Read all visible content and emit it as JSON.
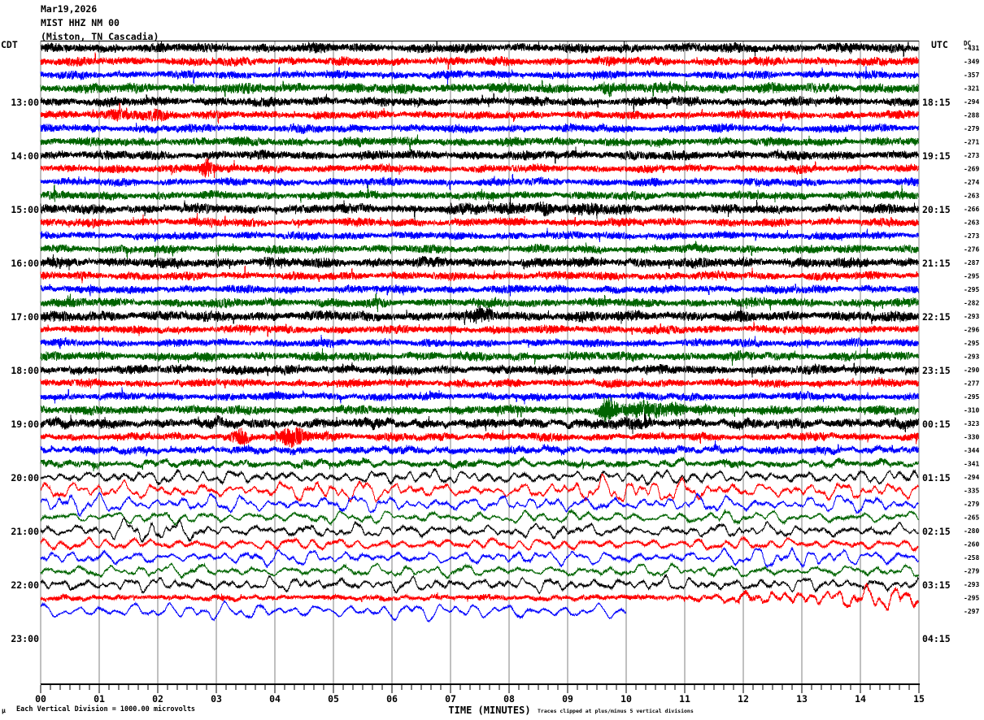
{
  "title": {
    "date": "Mar19,2026",
    "station": "MIST HHZ NM 00",
    "location": "(Miston, TN Cascadia)"
  },
  "left_axis": {
    "header": "CDT",
    "hour_labels": [
      "13:00",
      "14:00",
      "15:00",
      "16:00",
      "17:00",
      "18:00",
      "19:00",
      "20:00",
      "21:00",
      "22:00",
      "23:00"
    ]
  },
  "right_axis": {
    "header": "UTC",
    "hour_labels": [
      "18:15",
      "19:15",
      "20:15",
      "21:15",
      "22:15",
      "23:15",
      "00:15",
      "01:15",
      "02:15",
      "03:15",
      "04:15"
    ],
    "dc_header": "DC",
    "dc_values": [
      "-431",
      "-349",
      "-357",
      "-321",
      "-294",
      "-288",
      "-279",
      "-271",
      "-273",
      "-269",
      "-274",
      "-263",
      "-266",
      "-263",
      "-273",
      "-276",
      "-287",
      "-295",
      "-295",
      "-282",
      "-293",
      "-296",
      "-295",
      "-293",
      "-290",
      "-277",
      "-295",
      "-310",
      "-323",
      "-330",
      "-344",
      "-341",
      "-294",
      "-335",
      "-279",
      "-265",
      "-280",
      "-260",
      "-258",
      "-279",
      "-293",
      "-295",
      "-297"
    ]
  },
  "x_axis": {
    "label": "TIME (MINUTES)",
    "tick_labels": [
      "00",
      "01",
      "02",
      "03",
      "04",
      "05",
      "06",
      "07",
      "08",
      "09",
      "10",
      "11",
      "12",
      "13",
      "14",
      "15"
    ]
  },
  "footnotes": {
    "corner_glyph": "μ",
    "left": "Each Vertical Division = 1000.00 microvolts",
    "right": "Traces clipped at plus/minus 5 vertical divisions"
  },
  "colors": {
    "background": "#ffffff",
    "frame": "#000000",
    "grid": "#808080",
    "trace_cycle": [
      "#000000",
      "#ff0000",
      "#0000ff",
      "#006400"
    ]
  },
  "chart_data": {
    "type": "line",
    "subtype": "helicorder-seismogram",
    "minutes_per_line": 15,
    "line_count": 43,
    "label_every_n_lines": 4,
    "traces": [
      {
        "hf": 4.49,
        "lf": 0.9,
        "end": 15,
        "events": []
      },
      {
        "hf": 4.09,
        "lf": 0.8,
        "end": 15,
        "events": []
      },
      {
        "hf": 3.83,
        "lf": 0.8,
        "end": 15,
        "events": []
      },
      {
        "hf": 4.75,
        "lf": 0.8,
        "end": 15,
        "events": [
          {
            "t": 9.7,
            "w": 0.06,
            "m": 0.9,
            "k": "hf"
          }
        ]
      },
      {
        "hf": 4.36,
        "lf": 0.9,
        "end": 15,
        "events": []
      },
      {
        "hf": 3.83,
        "lf": 0.8,
        "end": 15,
        "events": [
          {
            "t": 1.8,
            "w": 0.22,
            "m": 1.3,
            "k": "hf"
          },
          {
            "t": 1.35,
            "w": 0.1,
            "m": 0.7,
            "k": "hf"
          }
        ]
      },
      {
        "hf": 3.83,
        "lf": 0.8,
        "end": 15,
        "events": []
      },
      {
        "hf": 4.22,
        "lf": 0.8,
        "end": 15,
        "events": []
      },
      {
        "hf": 4.36,
        "lf": 0.9,
        "end": 15,
        "events": []
      },
      {
        "hf": 3.7,
        "lf": 0.8,
        "end": 15,
        "events": [
          {
            "t": 2.83,
            "w": 0.07,
            "m": 2.4,
            "k": "hf"
          },
          {
            "t": 2.6,
            "w": 0.2,
            "m": 0.7,
            "k": "hf"
          }
        ]
      },
      {
        "hf": 3.7,
        "lf": 0.8,
        "end": 15,
        "events": []
      },
      {
        "hf": 3.96,
        "lf": 0.8,
        "end": 15,
        "events": []
      },
      {
        "hf": 4.49,
        "lf": 0.9,
        "end": 15,
        "events": [
          {
            "t": 8.58,
            "w": 0.09,
            "m": 1.8,
            "k": "hf"
          },
          {
            "t": 9.35,
            "w": 0.15,
            "m": 0.9,
            "k": "hf"
          },
          {
            "t": 8.0,
            "w": 0.5,
            "m": 0.35,
            "k": "hf"
          }
        ]
      },
      {
        "hf": 3.96,
        "lf": 0.8,
        "end": 15,
        "events": []
      },
      {
        "hf": 3.7,
        "lf": 0.8,
        "end": 15,
        "events": []
      },
      {
        "hf": 3.96,
        "lf": 0.8,
        "end": 15,
        "events": []
      },
      {
        "hf": 4.75,
        "lf": 0.9,
        "end": 15,
        "events": []
      },
      {
        "hf": 3.96,
        "lf": 0.8,
        "end": 15,
        "events": []
      },
      {
        "hf": 3.83,
        "lf": 0.8,
        "end": 15,
        "events": []
      },
      {
        "hf": 4.22,
        "lf": 0.8,
        "end": 15,
        "events": []
      },
      {
        "hf": 4.88,
        "lf": 0.9,
        "end": 15,
        "events": [
          {
            "t": 7.6,
            "w": 0.15,
            "m": 0.8,
            "k": "hf"
          }
        ]
      },
      {
        "hf": 3.96,
        "lf": 0.8,
        "end": 15,
        "events": []
      },
      {
        "hf": 3.7,
        "lf": 0.8,
        "end": 15,
        "events": []
      },
      {
        "hf": 4.22,
        "lf": 0.9,
        "end": 15,
        "events": []
      },
      {
        "hf": 4.36,
        "lf": 1.0,
        "end": 15,
        "events": []
      },
      {
        "hf": 3.83,
        "lf": 0.9,
        "end": 15,
        "events": []
      },
      {
        "hf": 3.7,
        "lf": 0.9,
        "end": 15,
        "events": []
      },
      {
        "hf": 4.22,
        "lf": 0.9,
        "end": 15,
        "events": [
          {
            "t": 9.67,
            "w": 0.1,
            "m": 2.4,
            "k": "hf"
          },
          {
            "t": 10.3,
            "w": 0.22,
            "m": 1.5,
            "k": "hf"
          },
          {
            "t": 10.9,
            "w": 0.15,
            "m": 0.8,
            "k": "hf"
          },
          {
            "t": 11.3,
            "w": 0.09,
            "m": 1.3,
            "k": "hf"
          }
        ]
      },
      {
        "hf": 4.49,
        "lf": 2.2,
        "end": 15,
        "events": [
          {
            "t": 9.7,
            "w": 0.3,
            "m": 0.4,
            "k": "hf"
          }
        ]
      },
      {
        "hf": 3.7,
        "lf": 1.2,
        "end": 15,
        "events": [
          {
            "t": 3.4,
            "w": 0.09,
            "m": 1.8,
            "k": "hf"
          },
          {
            "t": 4.35,
            "w": 0.18,
            "m": 1.6,
            "k": "hf"
          },
          {
            "t": 4.8,
            "w": 0.2,
            "m": 0.6,
            "k": "hf"
          }
        ]
      },
      {
        "hf": 3.43,
        "lf": 2.2,
        "end": 15,
        "events": [],
        "pf": 1.1
      },
      {
        "hf": 2.9,
        "lf": 3.4,
        "end": 15,
        "events": [],
        "pf": 1.1
      },
      {
        "hf": 1.3,
        "lf": 6.9,
        "end": 15,
        "events": [],
        "pf": 1.15
      },
      {
        "hf": 1.3,
        "lf": 8.2,
        "end": 15,
        "events": [
          {
            "t": 10.6,
            "w": 1.0,
            "m": 0.8,
            "k": "lf"
          },
          {
            "t": 4.8,
            "w": 0.8,
            "m": 0.35,
            "k": "lf"
          }
        ],
        "pf": 1.15
      },
      {
        "hf": 1.13,
        "lf": 8.28,
        "end": 15,
        "events": [
          {
            "t": 0.8,
            "w": 0.7,
            "m": 0.45,
            "k": "lf"
          }
        ],
        "pf": 1.15
      },
      {
        "hf": 1.13,
        "lf": 6.32,
        "end": 15,
        "events": [],
        "pf": 1.15
      },
      {
        "hf": 1.22,
        "lf": 7.13,
        "end": 15,
        "events": [
          {
            "t": 1.7,
            "w": 0.55,
            "m": 0.9,
            "k": "lf"
          }
        ],
        "pf": 1.15
      },
      {
        "hf": 1.46,
        "lf": 5.75,
        "end": 15,
        "events": [],
        "pf": 1.15
      },
      {
        "hf": 1.13,
        "lf": 7.36,
        "end": 15,
        "events": [
          {
            "t": 13.2,
            "w": 0.8,
            "m": 0.7,
            "k": "lf"
          }
        ],
        "pf": 1.15
      },
      {
        "hf": 1.13,
        "lf": 6.21,
        "end": 15,
        "events": [],
        "pf": 1.15
      },
      {
        "hf": 1.3,
        "lf": 7.0,
        "end": 15,
        "events": [],
        "pf": 1.15
      },
      {
        "hf": 2.38,
        "lf": 1.7,
        "end": 15,
        "events": [
          {
            "t": 13.7,
            "w": 1.1,
            "m": 7.0,
            "k": "lf"
          }
        ],
        "pf": 1.3
      },
      {
        "hf": 0.97,
        "lf": 8.6,
        "end": 10,
        "events": [],
        "pf": 1.4
      }
    ]
  }
}
